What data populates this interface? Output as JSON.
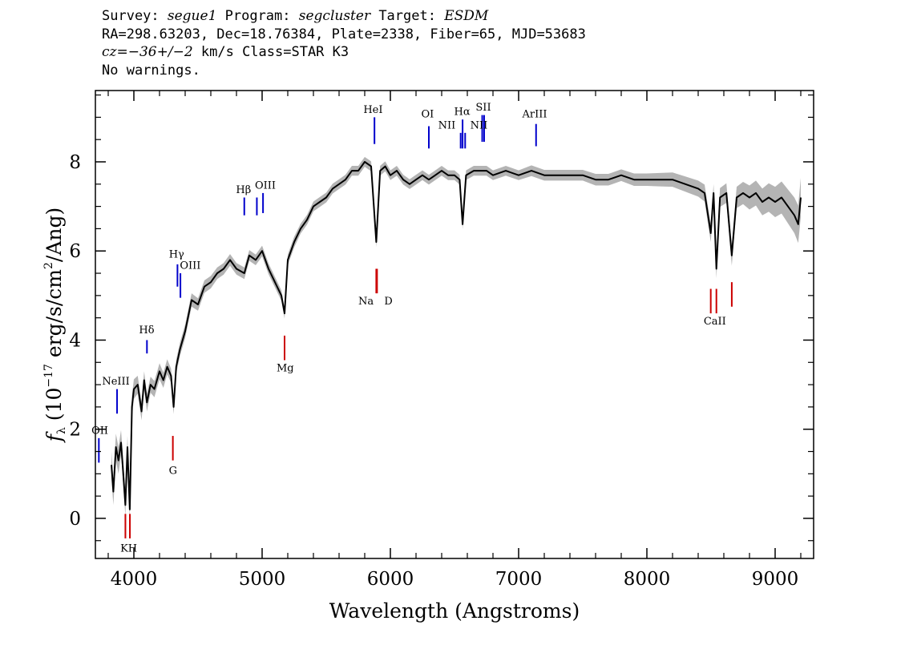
{
  "header": {
    "line1": {
      "survey_label": "Survey: ",
      "survey": "segue1",
      "program_label": " Program: ",
      "program": "segcluster",
      "target_label": " Target: ",
      "target": "ESDM"
    },
    "line2": "RA=298.63203, Dec=18.76384, Plate=2338, Fiber=65, MJD=53683",
    "line3": {
      "cz_label": "cz=",
      "cz_value": "−36+/−2",
      "cz_unit": " km/s Class=STAR K3"
    },
    "line4": "No warnings."
  },
  "chart_data": {
    "type": "line",
    "xlabel": "Wavelength (Angstroms)",
    "ylabel": {
      "symbol": "f",
      "subscript": "λ",
      "prefix": " (10",
      "exponent": "−17",
      "middle": " erg/s/cm",
      "exponent2": "2",
      "suffix": "/Ang)"
    },
    "xlim": [
      3700,
      9300
    ],
    "ylim": [
      -0.9,
      9.6
    ],
    "xticks": [
      4000,
      5000,
      6000,
      7000,
      8000,
      9000
    ],
    "yticks": [
      0,
      2,
      4,
      6,
      8
    ],
    "grid": false,
    "colors": {
      "flux": "#000000",
      "error_band": "#b4b4b4",
      "emission": "#0000cc",
      "absorption": "#cc0000"
    },
    "series": [
      {
        "x": [
          3825,
          3840,
          3860,
          3880,
          3900,
          3915,
          3934,
          3950,
          3968,
          3985,
          4000,
          4030,
          4060,
          4080,
          4102,
          4130,
          4160,
          4200,
          4230,
          4260,
          4290,
          4310,
          4330,
          4360,
          4400,
          4450,
          4500,
          4550,
          4600,
          4650,
          4700,
          4750,
          4800,
          4861,
          4900,
          4950,
          5000,
          5050,
          5100,
          5150,
          5175,
          5200,
          5250,
          5300,
          5350,
          5400,
          5450,
          5500,
          5550,
          5600,
          5650,
          5700,
          5750,
          5800,
          5850,
          5890,
          5920,
          5960,
          6000,
          6050,
          6100,
          6150,
          6200,
          6250,
          6300,
          6350,
          6400,
          6450,
          6500,
          6540,
          6563,
          6590,
          6650,
          6700,
          6750,
          6800,
          6900,
          7000,
          7100,
          7200,
          7300,
          7400,
          7500,
          7600,
          7700,
          7800,
          7900,
          8000,
          8100,
          8200,
          8300,
          8400,
          8450,
          8498,
          8520,
          8542,
          8570,
          8620,
          8662,
          8700,
          8750,
          8800,
          8850,
          8900,
          8950,
          9000,
          9050,
          9100,
          9150,
          9180,
          9200
        ],
        "y": [
          1.2,
          0.6,
          1.6,
          1.3,
          1.7,
          1.1,
          0.3,
          1.6,
          0.2,
          2.5,
          2.9,
          3.0,
          2.4,
          3.1,
          2.6,
          3.0,
          2.9,
          3.3,
          3.1,
          3.4,
          3.2,
          2.5,
          3.4,
          3.8,
          4.2,
          4.9,
          4.8,
          5.2,
          5.3,
          5.5,
          5.6,
          5.8,
          5.6,
          5.5,
          5.9,
          5.8,
          6.0,
          5.6,
          5.3,
          5.0,
          4.6,
          5.8,
          6.2,
          6.5,
          6.7,
          7.0,
          7.1,
          7.2,
          7.4,
          7.5,
          7.6,
          7.8,
          7.8,
          8.0,
          7.9,
          6.2,
          7.8,
          7.9,
          7.7,
          7.8,
          7.6,
          7.5,
          7.6,
          7.7,
          7.6,
          7.7,
          7.8,
          7.7,
          7.7,
          7.6,
          6.6,
          7.7,
          7.8,
          7.8,
          7.8,
          7.7,
          7.8,
          7.7,
          7.8,
          7.7,
          7.7,
          7.7,
          7.7,
          7.6,
          7.6,
          7.7,
          7.6,
          7.6,
          7.6,
          7.6,
          7.5,
          7.4,
          7.3,
          6.4,
          7.3,
          5.6,
          7.2,
          7.3,
          5.9,
          7.2,
          7.3,
          7.2,
          7.3,
          7.1,
          7.2,
          7.1,
          7.2,
          7.0,
          6.8,
          6.6,
          7.2
        ],
        "error": [
          0.3,
          0.3,
          0.3,
          0.3,
          0.28,
          0.28,
          0.25,
          0.25,
          0.25,
          0.25,
          0.22,
          0.2,
          0.2,
          0.2,
          0.2,
          0.18,
          0.18,
          0.18,
          0.17,
          0.17,
          0.16,
          0.16,
          0.16,
          0.15,
          0.15,
          0.15,
          0.14,
          0.14,
          0.14,
          0.13,
          0.13,
          0.13,
          0.13,
          0.13,
          0.12,
          0.12,
          0.12,
          0.12,
          0.12,
          0.12,
          0.12,
          0.12,
          0.12,
          0.11,
          0.11,
          0.11,
          0.11,
          0.11,
          0.11,
          0.11,
          0.11,
          0.11,
          0.11,
          0.11,
          0.11,
          0.11,
          0.11,
          0.11,
          0.11,
          0.11,
          0.11,
          0.11,
          0.11,
          0.11,
          0.11,
          0.11,
          0.11,
          0.11,
          0.11,
          0.11,
          0.11,
          0.11,
          0.11,
          0.11,
          0.11,
          0.11,
          0.11,
          0.11,
          0.12,
          0.12,
          0.12,
          0.12,
          0.12,
          0.13,
          0.13,
          0.13,
          0.14,
          0.14,
          0.15,
          0.16,
          0.17,
          0.18,
          0.19,
          0.2,
          0.2,
          0.21,
          0.21,
          0.22,
          0.23,
          0.24,
          0.25,
          0.27,
          0.28,
          0.3,
          0.32,
          0.34,
          0.36,
          0.38,
          0.4,
          0.42,
          0.44
        ]
      }
    ],
    "emission_lines": [
      {
        "label": "OII",
        "x": 3727,
        "y0": 1.25,
        "y1": 1.8
      },
      {
        "label": "NeIII",
        "x": 3869,
        "y0": 2.35,
        "y1": 2.9
      },
      {
        "label": "Hδ",
        "x": 4102,
        "y0": 3.7,
        "y1": 4.0
      },
      {
        "label": "Hγ",
        "x": 4340,
        "y0": 5.2,
        "y1": 5.7
      },
      {
        "label": "OIII",
        "x": 4363,
        "y0": 4.95,
        "y1": 5.5
      },
      {
        "label": "Hβ",
        "x": 4861,
        "y0": 6.8,
        "y1": 7.2
      },
      {
        "label": "OIII",
        "x": 4959,
        "y0": 6.8,
        "y1": 7.2
      },
      {
        "label": "OIII",
        "x": 5007,
        "y0": 6.85,
        "y1": 7.3
      },
      {
        "label": "HeI",
        "x": 5876,
        "y0": 8.4,
        "y1": 9.0
      },
      {
        "label": "OI",
        "x": 6300,
        "y0": 8.3,
        "y1": 8.8
      },
      {
        "label": "NII",
        "x": 6548,
        "y0": 8.3,
        "y1": 8.65
      },
      {
        "label": "Hα",
        "x": 6563,
        "y0": 8.3,
        "y1": 8.95
      },
      {
        "label": "NII",
        "x": 6583,
        "y0": 8.3,
        "y1": 8.65
      },
      {
        "label": "SII",
        "x": 6716,
        "y0": 8.45,
        "y1": 9.05
      },
      {
        "label": "SII",
        "x": 6731,
        "y0": 8.45,
        "y1": 9.05
      },
      {
        "label": "ArIII",
        "x": 7136,
        "y0": 8.35,
        "y1": 8.85
      }
    ],
    "absorption_lines": [
      {
        "label": "K",
        "x": 3934,
        "y0": -0.45,
        "y1": 0.1
      },
      {
        "label": "H",
        "x": 3969,
        "y0": -0.45,
        "y1": 0.1
      },
      {
        "label": "G",
        "x": 4304,
        "y0": 1.3,
        "y1": 1.85
      },
      {
        "label": "Mg",
        "x": 5175,
        "y0": 3.55,
        "y1": 4.1
      },
      {
        "label": "Na",
        "x": 5890,
        "y0": 5.05,
        "y1": 5.6
      },
      {
        "label": "D",
        "x": 5896,
        "y0": 5.05,
        "y1": 5.6
      },
      {
        "label": "CaII",
        "x": 8498,
        "y0": 4.6,
        "y1": 5.15
      },
      {
        "label": "CaII",
        "x": 8542,
        "y0": 4.6,
        "y1": 5.15
      },
      {
        "label": "CaII",
        "x": 8662,
        "y0": 4.75,
        "y1": 5.3
      }
    ],
    "line_labels": [
      {
        "text": "OII",
        "x": 3735,
        "y": 1.9,
        "color": "emission"
      },
      {
        "text": "NeIII",
        "x": 3860,
        "y": 3.0,
        "color": "emission"
      },
      {
        "text": "Hδ",
        "x": 4100,
        "y": 4.15,
        "color": "emission"
      },
      {
        "text": "Hγ",
        "x": 4333,
        "y": 5.85,
        "color": "emission"
      },
      {
        "text": "OIII",
        "x": 4440,
        "y": 5.6,
        "color": "emission"
      },
      {
        "text": "Hβ",
        "x": 4855,
        "y": 7.3,
        "color": "emission"
      },
      {
        "text": "OIII",
        "x": 5025,
        "y": 7.4,
        "color": "emission"
      },
      {
        "text": "HeI",
        "x": 5865,
        "y": 9.1,
        "color": "emission"
      },
      {
        "text": "OI",
        "x": 6290,
        "y": 9.0,
        "color": "emission"
      },
      {
        "text": "NII",
        "x": 6440,
        "y": 8.75,
        "color": "emission"
      },
      {
        "text": "Hα",
        "x": 6560,
        "y": 9.05,
        "color": "emission"
      },
      {
        "text": "NII",
        "x": 6690,
        "y": 8.75,
        "color": "emission"
      },
      {
        "text": "SII",
        "x": 6725,
        "y": 9.15,
        "color": "emission"
      },
      {
        "text": "ArIII",
        "x": 7125,
        "y": 9.0,
        "color": "emission"
      },
      {
        "text": "KH",
        "x": 3960,
        "y": -0.75,
        "color": "absorption"
      },
      {
        "text": "G",
        "x": 4305,
        "y": 1.0,
        "color": "absorption"
      },
      {
        "text": "Mg",
        "x": 5180,
        "y": 3.3,
        "color": "absorption"
      },
      {
        "text": "Na",
        "x": 5810,
        "y": 4.8,
        "color": "absorption"
      },
      {
        "text": "D",
        "x": 5985,
        "y": 4.8,
        "color": "absorption"
      },
      {
        "text": "CaII",
        "x": 8530,
        "y": 4.35,
        "color": "absorption"
      }
    ]
  }
}
